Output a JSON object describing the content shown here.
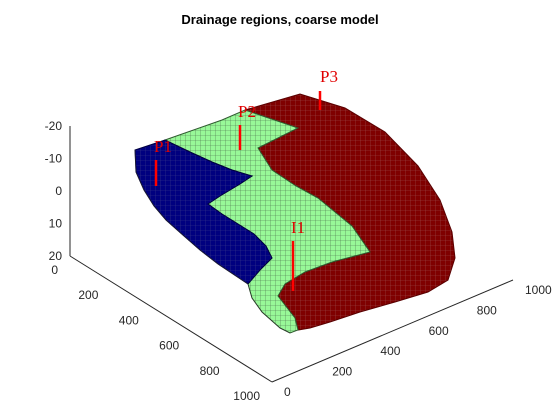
{
  "chart_data": {
    "type": "3d-grid",
    "title": "Drainage regions, coarse model",
    "xlabel": "",
    "ylabel": "",
    "zlabel": "",
    "x_ticks": [
      "0",
      "200",
      "400",
      "600",
      "800",
      "1000"
    ],
    "y_ticks": [
      "0",
      "200",
      "400",
      "600",
      "800",
      "1000"
    ],
    "z_ticks": [
      "-20",
      "-10",
      "0",
      "10",
      "20"
    ],
    "xlim": [
      0,
      1000
    ],
    "ylim": [
      0,
      1000
    ],
    "zlim": [
      -20,
      20
    ],
    "grid": false,
    "regions": [
      {
        "well": "P1",
        "color": "#00007f"
      },
      {
        "well": "P2",
        "color": "#98f898"
      },
      {
        "well": "P3",
        "color": "#7f0000"
      }
    ],
    "wells": [
      {
        "name": "P1",
        "type": "producer",
        "color": "#ff0000"
      },
      {
        "name": "P2",
        "type": "producer",
        "color": "#ff0000"
      },
      {
        "name": "P3",
        "type": "producer",
        "color": "#ff0000"
      },
      {
        "name": "I1",
        "type": "injector",
        "color": "#ff0000"
      }
    ]
  }
}
